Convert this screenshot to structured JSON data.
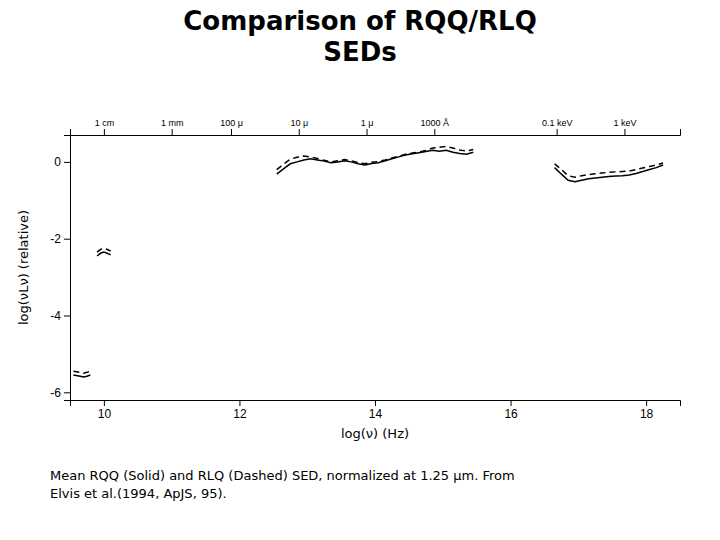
{
  "chart_data": {
    "type": "line",
    "title": "Comparison of RQQ/RLQ\nSEDs",
    "xlabel": "log(ν) (Hz)",
    "ylabel": "log(νLν) (relative)",
    "caption": "Mean RQQ (Solid) and RLQ (Dashed) SED, normalized at 1.25 μm. From\nElvis et al.(1994, ApJS, 95).",
    "xlim": [
      9.5,
      18.5
    ],
    "ylim": [
      -6.2,
      0.7
    ],
    "xticks": [
      10,
      12,
      14,
      16,
      18
    ],
    "yticks": [
      0,
      -2,
      -4,
      -6
    ],
    "x2ticks": [
      {
        "value": 10.0,
        "label": "1 cm"
      },
      {
        "value": 11.0,
        "label": "1 mm"
      },
      {
        "value": 11.875,
        "label": "100 μ"
      },
      {
        "value": 12.875,
        "label": "10 μ"
      },
      {
        "value": 13.875,
        "label": "1 μ"
      },
      {
        "value": 14.875,
        "label": "1000 Å"
      },
      {
        "value": 16.68,
        "label": "0.1 keV"
      },
      {
        "value": 17.68,
        "label": "1 keV"
      }
    ],
    "grid": false,
    "x": [
      9.55,
      9.65,
      9.7,
      9.75,
      9.8,
      null,
      9.9,
      9.95,
      10.0,
      10.05,
      10.1,
      null,
      12.55,
      12.65,
      12.75,
      12.85,
      12.95,
      13.05,
      13.15,
      13.25,
      13.35,
      13.45,
      13.55,
      13.65,
      13.75,
      13.85,
      13.95,
      14.05,
      14.15,
      14.25,
      14.35,
      14.45,
      14.55,
      14.65,
      14.75,
      14.85,
      14.95,
      15.05,
      15.15,
      15.25,
      15.35,
      15.45,
      null,
      16.65,
      16.75,
      16.85,
      16.95,
      17.05,
      17.15,
      17.25,
      17.35,
      17.45,
      17.55,
      17.65,
      17.75,
      17.85,
      17.95,
      18.05,
      18.15,
      18.25
    ],
    "series": [
      {
        "color": "#000000",
        "line_style": "solid",
        "values": [
          -5.55,
          -5.58,
          -5.6,
          -5.58,
          -5.55,
          null,
          -2.45,
          -2.38,
          -2.35,
          -2.38,
          -2.42,
          null,
          -0.32,
          -0.18,
          -0.05,
          0.0,
          0.05,
          0.08,
          0.05,
          0.02,
          -0.02,
          0.0,
          0.03,
          0.0,
          -0.05,
          -0.08,
          -0.04,
          -0.02,
          0.03,
          0.08,
          0.13,
          0.18,
          0.21,
          0.24,
          0.27,
          0.3,
          0.28,
          0.3,
          0.25,
          0.22,
          0.2,
          0.25,
          null,
          -0.15,
          -0.32,
          -0.48,
          -0.52,
          -0.48,
          -0.44,
          -0.42,
          -0.4,
          -0.38,
          -0.37,
          -0.36,
          -0.34,
          -0.3,
          -0.25,
          -0.2,
          -0.15,
          -0.08
        ]
      },
      {
        "color": "#000000",
        "line_style": "dashed",
        "values": [
          -5.45,
          -5.48,
          -5.5,
          -5.48,
          -5.45,
          null,
          -2.35,
          -2.28,
          -2.25,
          -2.28,
          -2.32,
          null,
          -0.2,
          -0.06,
          0.07,
          0.12,
          0.15,
          0.13,
          0.09,
          0.04,
          0.0,
          0.03,
          0.06,
          0.03,
          -0.02,
          -0.05,
          -0.01,
          0.01,
          0.05,
          0.1,
          0.15,
          0.2,
          0.23,
          0.26,
          0.3,
          0.36,
          0.38,
          0.4,
          0.36,
          0.31,
          0.28,
          0.32,
          null,
          -0.05,
          -0.2,
          -0.36,
          -0.4,
          -0.36,
          -0.33,
          -0.31,
          -0.29,
          -0.27,
          -0.26,
          -0.25,
          -0.24,
          -0.2,
          -0.16,
          -0.12,
          -0.08,
          -0.03
        ]
      }
    ]
  }
}
